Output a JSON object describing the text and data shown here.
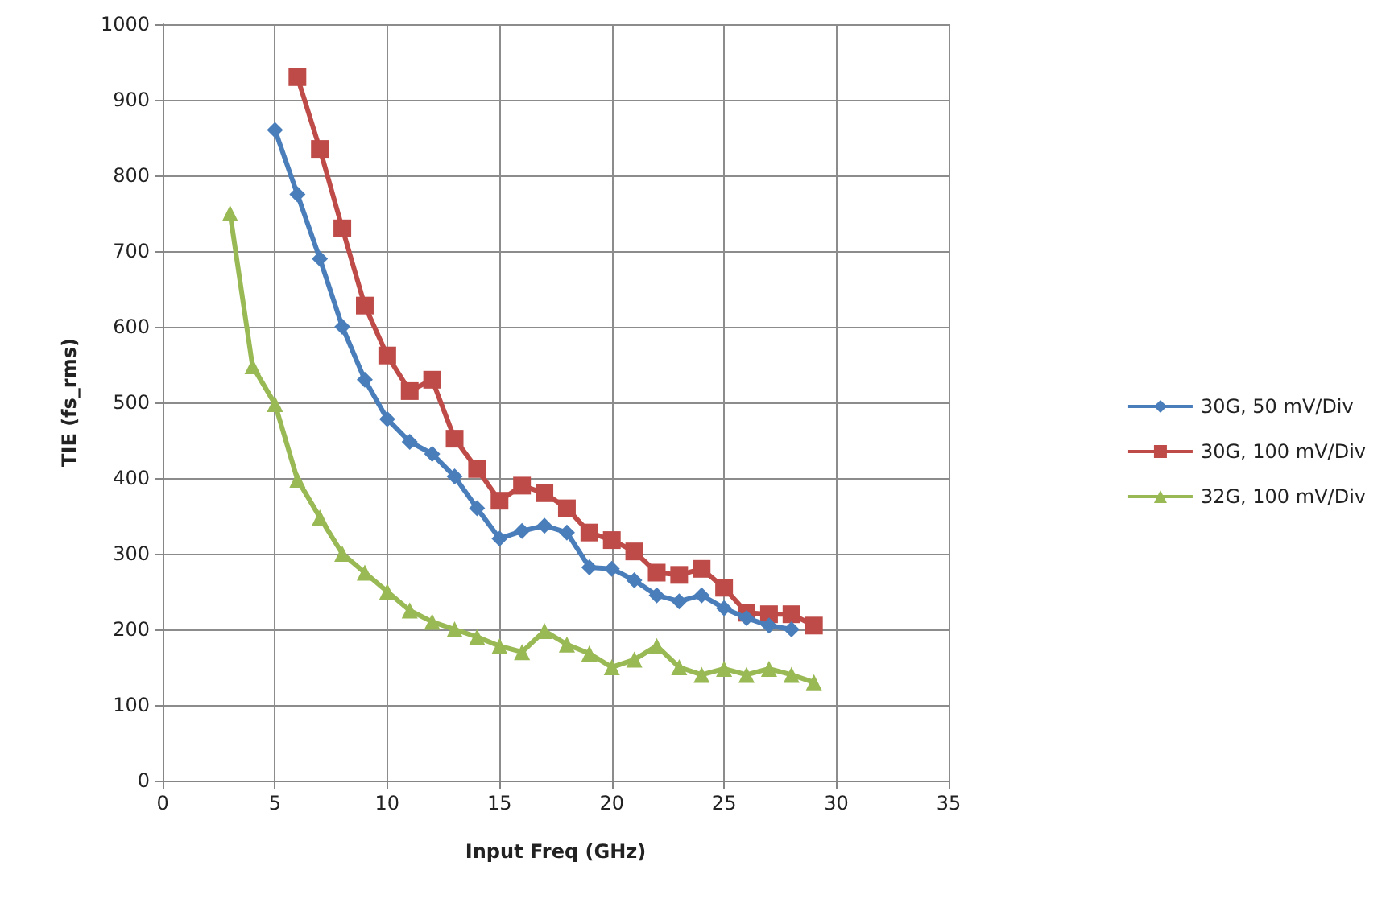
{
  "chart_data": {
    "type": "line",
    "xlabel": "Input Freq (GHz)",
    "ylabel": "TIE (fs_rms)",
    "xlim": [
      0,
      35
    ],
    "xticks": [
      0,
      5,
      10,
      15,
      20,
      25,
      30,
      35
    ],
    "ylim": [
      0,
      1000
    ],
    "yticks": [
      0,
      100,
      200,
      300,
      400,
      500,
      600,
      700,
      800,
      900,
      1000
    ],
    "grid": true,
    "legend": "right",
    "series": [
      {
        "name": "30G, 50 mV/Div",
        "color": "#4a7ebb",
        "marker": "diamond",
        "x": [
          5,
          6,
          7,
          8,
          9,
          10,
          11,
          12,
          13,
          14,
          15,
          16,
          17,
          18,
          19,
          20,
          21,
          22,
          23,
          24,
          25,
          26,
          27,
          28
        ],
        "values": [
          860,
          775,
          690,
          600,
          530,
          478,
          448,
          432,
          402,
          360,
          320,
          330,
          337,
          328,
          282,
          280,
          265,
          245,
          237,
          245,
          228,
          215,
          205,
          200
        ]
      },
      {
        "name": "30G, 100 mV/Div",
        "color": "#be4b48",
        "marker": "square",
        "x": [
          6,
          7,
          8,
          9,
          10,
          11,
          12,
          13,
          14,
          15,
          16,
          17,
          18,
          19,
          20,
          21,
          22,
          23,
          24,
          25,
          26,
          27,
          28,
          29
        ],
        "values": [
          930,
          835,
          730,
          628,
          562,
          515,
          530,
          452,
          412,
          370,
          390,
          380,
          360,
          328,
          318,
          303,
          275,
          272,
          280,
          255,
          222,
          220,
          220,
          205
        ]
      },
      {
        "name": "32G, 100 mV/Div",
        "color": "#98b954",
        "marker": "triangle",
        "x": [
          3,
          4,
          5,
          6,
          7,
          8,
          9,
          10,
          11,
          12,
          13,
          14,
          15,
          16,
          17,
          18,
          19,
          20,
          21,
          22,
          23,
          24,
          25,
          26,
          27,
          28,
          29
        ],
        "values": [
          750,
          548,
          498,
          398,
          348,
          300,
          275,
          250,
          225,
          210,
          200,
          190,
          178,
          170,
          198,
          180,
          168,
          150,
          160,
          178,
          150,
          140,
          148,
          140,
          148,
          140,
          130
        ]
      }
    ]
  }
}
